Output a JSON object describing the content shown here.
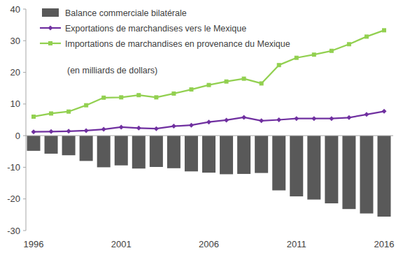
{
  "chart_data": {
    "type": "bar",
    "annotations": [
      "(en milliards de dollars)"
    ],
    "categories": [
      "1996",
      null,
      null,
      null,
      null,
      "2001",
      null,
      null,
      null,
      null,
      "2006",
      null,
      null,
      null,
      null,
      "2011",
      null,
      null,
      null,
      null,
      "2016"
    ],
    "series": [
      {
        "name": "Balance commerciale bilatérale",
        "type": "bar",
        "color": "#595959",
        "values": [
          -4.8,
          -5.7,
          -6.2,
          -8.0,
          -10.0,
          -9.4,
          -10.4,
          -9.9,
          -10.3,
          -11.3,
          -11.7,
          -12.2,
          -12.1,
          -11.8,
          -17.3,
          -19.2,
          -20.2,
          -21.4,
          -23.2,
          -24.6,
          -25.6
        ]
      },
      {
        "name": "Exportations de marchandises vers le Mexique",
        "type": "line",
        "color": "#7030a0",
        "marker": "diamond",
        "values": [
          1.2,
          1.3,
          1.4,
          1.6,
          2.0,
          2.7,
          2.4,
          2.2,
          3.0,
          3.3,
          4.3,
          4.9,
          5.8,
          4.7,
          5.0,
          5.4,
          5.4,
          5.4,
          5.7,
          6.7,
          7.7
        ]
      },
      {
        "name": "Importations de marchandises en provenance du Mexique",
        "type": "line",
        "color": "#92d050",
        "marker": "square",
        "values": [
          6.0,
          7.0,
          7.6,
          9.6,
          12.0,
          12.1,
          12.8,
          12.1,
          13.3,
          14.6,
          16.0,
          17.1,
          18.0,
          16.5,
          22.3,
          24.6,
          25.6,
          26.8,
          28.9,
          31.3,
          33.3
        ]
      }
    ],
    "ylim": [
      -30,
      40
    ],
    "yticks": [
      -30,
      -20,
      -10,
      0,
      10,
      20,
      30,
      40
    ],
    "grid": false,
    "legend": "upper left"
  }
}
